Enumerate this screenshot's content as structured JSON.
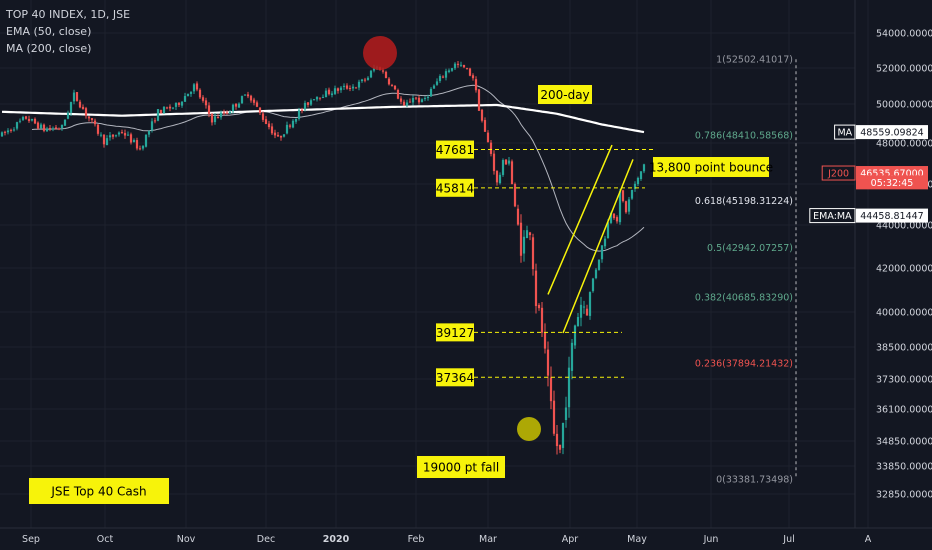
{
  "legend": {
    "title": "TOP 40 INDEX, 1D, JSE",
    "ema": "EMA (50, close)",
    "ma": "MA (200, close)"
  },
  "colors": {
    "background": "#131722",
    "up": "#26a69a",
    "down": "#ef5350",
    "ema": "#b2b5be",
    "ma": "#ffffff",
    "annotation": "#f7f30a",
    "dashed": "#f7f30a",
    "fib_green": "#5fa88c",
    "fib_red": "#ef5350",
    "fib_white": "#e0e3eb",
    "fib_grey": "#9598a1"
  },
  "chart_data": {
    "type": "candlestick",
    "title": "TOP 40 INDEX, 1D, JSE",
    "ylim": [
      32300,
      54900
    ],
    "y_ticks": [
      "54000.00000",
      "52000.00000",
      "50000.00000",
      "48000.00000",
      "46000.00000",
      "44000.00000",
      "42000.00000",
      "40000.00000",
      "38500.00000",
      "37300.00000",
      "36100.00000",
      "34850.00000",
      "33850.00000",
      "32850.00000"
    ],
    "x_ticks": [
      "Sep",
      "Oct",
      "Nov",
      "Dec",
      "2020",
      "Feb",
      "Mar",
      "Apr",
      "May",
      "Jun",
      "Jul",
      "A"
    ],
    "price_levels": [
      {
        "label": "47681",
        "value": 47681
      },
      {
        "label": "45814",
        "value": 45814
      },
      {
        "label": "39127",
        "value": 39127
      },
      {
        "label": "37364",
        "value": 37364
      }
    ],
    "fib_levels": [
      {
        "label": "1(52502.41017)",
        "value": 52502.41017,
        "color": "#9598a1"
      },
      {
        "label": "0.786(48410.58568)",
        "value": 48410.58568,
        "color": "#5fa88c"
      },
      {
        "label": "0.618(45198.31224)",
        "value": 45198.31224,
        "color": "#e0e3eb"
      },
      {
        "label": "0.5(42942.07257)",
        "value": 42942.07257,
        "color": "#5fa88c"
      },
      {
        "label": "0.382(40685.83290)",
        "value": 40685.8329,
        "color": "#5fa88c"
      },
      {
        "label": "0.236(37894.21432)",
        "value": 37894.21432,
        "color": "#ef5350"
      },
      {
        "label": "0(33381.73498)",
        "value": 33381.73498,
        "color": "#9598a1"
      }
    ],
    "price_tags": [
      {
        "label": "MA",
        "value": "48559.09824",
        "y": 48559.09824,
        "bg": "#ffffff",
        "fg": "#131722"
      },
      {
        "label": "J200",
        "value": "46535.67000",
        "y": 46535.67,
        "bg": "#ef5350",
        "fg": "#ffffff"
      },
      {
        "label": "",
        "value": "05:32:45",
        "y": 46080,
        "bg": "#ef5350",
        "fg": "#ffffff"
      },
      {
        "label": "EMA:MA",
        "value": "44458.81447",
        "y": 44458.81447,
        "bg": "#ffffff",
        "fg": "#131722"
      }
    ],
    "annotations": [
      {
        "text": "200-day"
      },
      {
        "text": "13,800 point bounce"
      },
      {
        "text": "19000 pt fall"
      },
      {
        "text": "JSE Top 40 Cash"
      }
    ]
  }
}
